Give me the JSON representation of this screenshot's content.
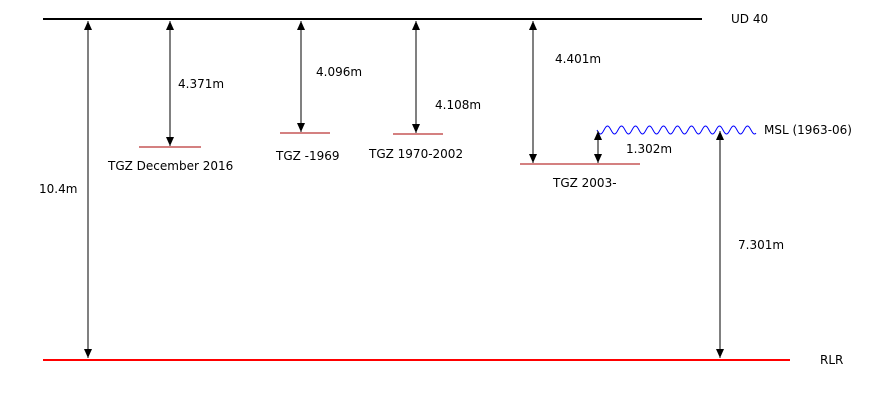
{
  "datum_labels": {
    "ud40": "UD 40",
    "rlr": "RLR",
    "msl": "MSL (1963-06)"
  },
  "gauge_labels": {
    "tgz_dec_2016": "TGZ December 2016",
    "tgz_1969": "TGZ -1969",
    "tgz_1970_2002": "TGZ 1970-2002",
    "tgz_2003": "TGZ 2003-"
  },
  "distances": {
    "ud40_to_rlr": "10.4m",
    "ud40_to_tgz_dec_2016": "4.371m",
    "ud40_to_tgz_1969": "4.096m",
    "ud40_to_tgz_1970_2002": "4.108m",
    "ud40_to_tgz_2003": "4.401m",
    "tgz_2003_to_msl": "1.302m",
    "msl_to_rlr": "7.301m"
  },
  "colors": {
    "line": "#000000",
    "datum_rlr": "#ff0000",
    "gauge_zero": "#aa0000",
    "msl_wave": "#0000ff"
  }
}
